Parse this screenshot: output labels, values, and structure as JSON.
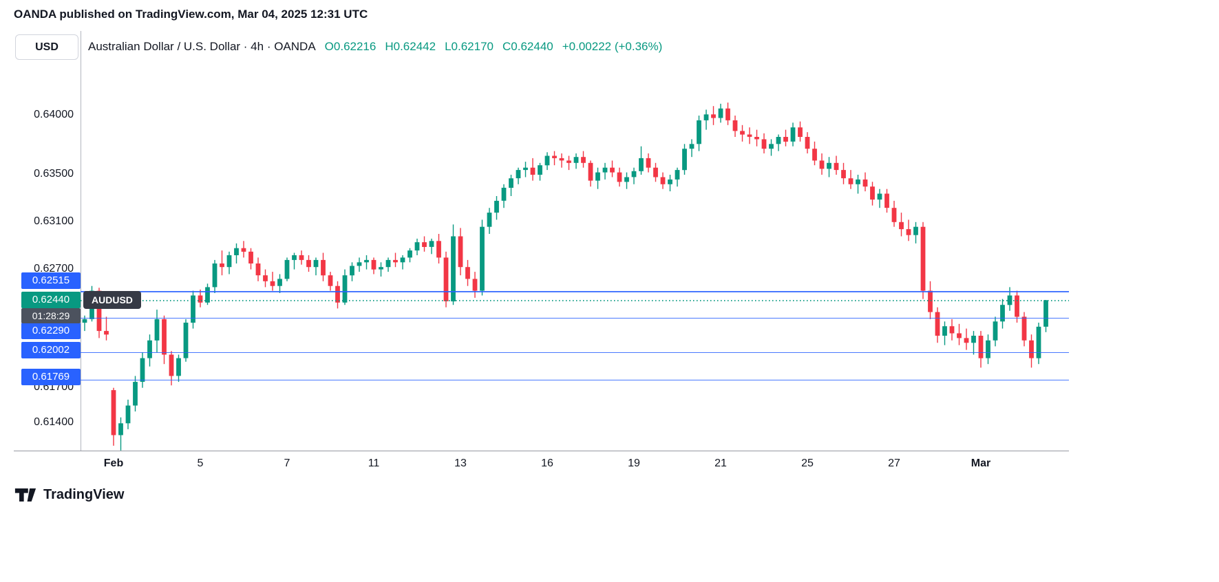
{
  "header": {
    "text": "OANDA published on TradingView.com, Mar 04, 2025 12:31 UTC"
  },
  "toolbar": {
    "currency_label": "USD"
  },
  "title": {
    "symbol_text": "Australian Dollar / U.S. Dollar · 4h · OANDA",
    "ohlc": [
      {
        "label": "O",
        "value": "0.62216"
      },
      {
        "label": "H",
        "value": "0.62442"
      },
      {
        "label": "L",
        "value": "0.62170"
      },
      {
        "label": "C",
        "value": "0.62440"
      }
    ],
    "change": "+0.00222 (+0.36%)"
  },
  "branding": {
    "text": "TradingView"
  },
  "colors": {
    "up": "#089981",
    "down": "#F23645",
    "line_blue": "#2962FF",
    "last_price_green": "#089981",
    "countdown_bg": "#4C525E",
    "chip_bg": "#363A45",
    "text": "#131722"
  },
  "chart_data": {
    "type": "candlestick",
    "symbol": "AUDUSD",
    "description": "Australian Dollar / U.S. Dollar",
    "timeframe": "4h",
    "exchange": "OANDA",
    "ohlc_display": {
      "open": "0.62216",
      "high": "0.62442",
      "low": "0.62170",
      "close": "0.62440",
      "change": "+0.00222 (+0.36%)"
    },
    "y_range": {
      "top": 0.64715,
      "bottom": 0.61169
    },
    "grid": false,
    "legend_position": "top-left",
    "y_axis_labels": [
      {
        "text": "0.64000",
        "price": 0.64
      },
      {
        "text": "0.63500",
        "price": 0.635
      },
      {
        "text": "0.63100",
        "price": 0.631
      },
      {
        "text": "0.62700",
        "price": 0.627
      },
      {
        "text": "0.61700",
        "price": 0.617
      },
      {
        "text": "0.61400",
        "price": 0.614
      }
    ],
    "price_lines": [
      {
        "label": "0.62515",
        "price": 0.62515,
        "label_dy": -15
      },
      {
        "label": "0.62290",
        "price": 0.6229,
        "label_dy": 19
      },
      {
        "label": "0.62002",
        "price": 0.62002,
        "label_dy": -3
      },
      {
        "label": "0.61769",
        "price": 0.61769,
        "label_dy": -4
      }
    ],
    "last_price": {
      "label": "0.62440",
      "price": 0.6244,
      "countdown": "01:28:29"
    },
    "x_ticks": [
      {
        "label": "Feb",
        "index": 4,
        "bold": true
      },
      {
        "label": "5",
        "index": 16,
        "bold": false
      },
      {
        "label": "7",
        "index": 28,
        "bold": false
      },
      {
        "label": "11",
        "index": 40,
        "bold": false
      },
      {
        "label": "13",
        "index": 52,
        "bold": false
      },
      {
        "label": "16",
        "index": 64,
        "bold": false
      },
      {
        "label": "19",
        "index": 76,
        "bold": false
      },
      {
        "label": "21",
        "index": 88,
        "bold": false
      },
      {
        "label": "25",
        "index": 100,
        "bold": false
      },
      {
        "label": "27",
        "index": 112,
        "bold": false
      },
      {
        "label": "Mar",
        "index": 124,
        "bold": true
      }
    ],
    "candles": [
      [
        0.6225,
        0.6231,
        0.6218,
        0.6228
      ],
      [
        0.6228,
        0.6256,
        0.6226,
        0.6252
      ],
      [
        0.6252,
        0.62545,
        0.6212,
        0.6218
      ],
      [
        0.6218,
        0.623,
        0.621,
        0.6215
      ],
      [
        0.6168,
        0.617,
        0.6121,
        0.613
      ],
      [
        0.613,
        0.6145,
        0.6117,
        0.614
      ],
      [
        0.614,
        0.616,
        0.6135,
        0.6155
      ],
      [
        0.6155,
        0.618,
        0.615,
        0.6175
      ],
      [
        0.6175,
        0.62,
        0.617,
        0.6195
      ],
      [
        0.6195,
        0.6215,
        0.6188,
        0.621
      ],
      [
        0.621,
        0.6236,
        0.62,
        0.6228
      ],
      [
        0.6228,
        0.6231,
        0.619,
        0.6198
      ],
      [
        0.6198,
        0.6201,
        0.6172,
        0.618
      ],
      [
        0.618,
        0.6198,
        0.6175,
        0.6195
      ],
      [
        0.6195,
        0.6228,
        0.6192,
        0.6225
      ],
      [
        0.6225,
        0.6252,
        0.622,
        0.6248
      ],
      [
        0.6248,
        0.6253,
        0.6238,
        0.6242
      ],
      [
        0.6242,
        0.6258,
        0.624,
        0.6255
      ],
      [
        0.6255,
        0.6278,
        0.625,
        0.6275
      ],
      [
        0.6275,
        0.6286,
        0.6265,
        0.6272
      ],
      [
        0.6272,
        0.6285,
        0.6266,
        0.6282
      ],
      [
        0.6282,
        0.6292,
        0.6275,
        0.6288
      ],
      [
        0.6288,
        0.6294,
        0.628,
        0.6285
      ],
      [
        0.6285,
        0.6288,
        0.627,
        0.6275
      ],
      [
        0.6275,
        0.628,
        0.626,
        0.6265
      ],
      [
        0.6265,
        0.627,
        0.6255,
        0.626
      ],
      [
        0.626,
        0.6268,
        0.6252,
        0.6256
      ],
      [
        0.6256,
        0.6266,
        0.625,
        0.6262
      ],
      [
        0.6262,
        0.628,
        0.626,
        0.6278
      ],
      [
        0.6278,
        0.6284,
        0.627,
        0.6282
      ],
      [
        0.6282,
        0.6286,
        0.6274,
        0.6278
      ],
      [
        0.6278,
        0.6282,
        0.6268,
        0.6272
      ],
      [
        0.6272,
        0.628,
        0.6265,
        0.6278
      ],
      [
        0.6278,
        0.6284,
        0.626,
        0.6265
      ],
      [
        0.6265,
        0.6268,
        0.6252,
        0.6256
      ],
      [
        0.6256,
        0.626,
        0.6237,
        0.6242
      ],
      [
        0.6242,
        0.627,
        0.624,
        0.6265
      ],
      [
        0.6265,
        0.6276,
        0.626,
        0.6273
      ],
      [
        0.6273,
        0.628,
        0.6268,
        0.6276
      ],
      [
        0.6276,
        0.6282,
        0.627,
        0.6278
      ],
      [
        0.6278,
        0.628,
        0.6266,
        0.627
      ],
      [
        0.627,
        0.6276,
        0.6264,
        0.6272
      ],
      [
        0.6272,
        0.628,
        0.6268,
        0.6278
      ],
      [
        0.6278,
        0.6284,
        0.6272,
        0.6276
      ],
      [
        0.6276,
        0.6282,
        0.627,
        0.628
      ],
      [
        0.628,
        0.6288,
        0.6276,
        0.6286
      ],
      [
        0.6286,
        0.6296,
        0.6282,
        0.6293
      ],
      [
        0.6293,
        0.6298,
        0.6285,
        0.6289
      ],
      [
        0.6289,
        0.6296,
        0.6283,
        0.6294
      ],
      [
        0.6294,
        0.63,
        0.6275,
        0.628
      ],
      [
        0.628,
        0.6285,
        0.6238,
        0.6243
      ],
      [
        0.6243,
        0.6308,
        0.624,
        0.6298
      ],
      [
        0.6298,
        0.6305,
        0.6265,
        0.6272
      ],
      [
        0.6272,
        0.6278,
        0.6256,
        0.6262
      ],
      [
        0.6262,
        0.6268,
        0.6246,
        0.6252
      ],
      [
        0.6252,
        0.6312,
        0.6248,
        0.6306
      ],
      [
        0.6306,
        0.6322,
        0.63,
        0.6318
      ],
      [
        0.6318,
        0.6332,
        0.6312,
        0.6328
      ],
      [
        0.6328,
        0.6342,
        0.6322,
        0.6339
      ],
      [
        0.6339,
        0.635,
        0.6332,
        0.6347
      ],
      [
        0.6347,
        0.6356,
        0.6342,
        0.6354
      ],
      [
        0.6354,
        0.6361,
        0.6348,
        0.6356
      ],
      [
        0.6356,
        0.6364,
        0.6345,
        0.635
      ],
      [
        0.635,
        0.636,
        0.6345,
        0.6358
      ],
      [
        0.6358,
        0.6369,
        0.6354,
        0.6366
      ],
      [
        0.6366,
        0.637,
        0.6358,
        0.6364
      ],
      [
        0.6364,
        0.6368,
        0.6356,
        0.6362
      ],
      [
        0.6362,
        0.6366,
        0.6354,
        0.636
      ],
      [
        0.636,
        0.6368,
        0.6355,
        0.6365
      ],
      [
        0.6365,
        0.637,
        0.6356,
        0.636
      ],
      [
        0.636,
        0.6362,
        0.634,
        0.6345
      ],
      [
        0.6345,
        0.6356,
        0.6338,
        0.6352
      ],
      [
        0.6352,
        0.636,
        0.6346,
        0.6356
      ],
      [
        0.6356,
        0.6362,
        0.6348,
        0.6352
      ],
      [
        0.6352,
        0.6356,
        0.634,
        0.6344
      ],
      [
        0.6344,
        0.6352,
        0.6338,
        0.6348
      ],
      [
        0.6348,
        0.6356,
        0.6342,
        0.6353
      ],
      [
        0.6353,
        0.6374,
        0.635,
        0.6364
      ],
      [
        0.6364,
        0.6368,
        0.6352,
        0.6356
      ],
      [
        0.6356,
        0.636,
        0.6344,
        0.6348
      ],
      [
        0.6348,
        0.6352,
        0.6338,
        0.6342
      ],
      [
        0.6342,
        0.635,
        0.6336,
        0.6346
      ],
      [
        0.6346,
        0.6356,
        0.634,
        0.6354
      ],
      [
        0.6354,
        0.6376,
        0.635,
        0.6372
      ],
      [
        0.6372,
        0.638,
        0.6365,
        0.6376
      ],
      [
        0.6376,
        0.64,
        0.637,
        0.6396
      ],
      [
        0.6396,
        0.6405,
        0.6388,
        0.6401
      ],
      [
        0.6401,
        0.6408,
        0.6392,
        0.6398
      ],
      [
        0.6398,
        0.641,
        0.6394,
        0.6406
      ],
      [
        0.6406,
        0.6411,
        0.6392,
        0.6396
      ],
      [
        0.6396,
        0.64,
        0.6382,
        0.6387
      ],
      [
        0.6387,
        0.6392,
        0.6378,
        0.6384
      ],
      [
        0.6384,
        0.639,
        0.6376,
        0.6382
      ],
      [
        0.6382,
        0.6388,
        0.6374,
        0.638
      ],
      [
        0.638,
        0.6385,
        0.6368,
        0.6372
      ],
      [
        0.6372,
        0.638,
        0.6366,
        0.6376
      ],
      [
        0.6376,
        0.6384,
        0.637,
        0.6382
      ],
      [
        0.6382,
        0.6388,
        0.6374,
        0.6378
      ],
      [
        0.6378,
        0.6394,
        0.6374,
        0.639
      ],
      [
        0.639,
        0.6395,
        0.6378,
        0.6382
      ],
      [
        0.6382,
        0.6386,
        0.6368,
        0.6372
      ],
      [
        0.6372,
        0.6378,
        0.6358,
        0.6362
      ],
      [
        0.6362,
        0.6368,
        0.635,
        0.6355
      ],
      [
        0.6355,
        0.6365,
        0.6348,
        0.636
      ],
      [
        0.636,
        0.6366,
        0.635,
        0.6354
      ],
      [
        0.6354,
        0.636,
        0.6342,
        0.6347
      ],
      [
        0.6347,
        0.6354,
        0.6338,
        0.6342
      ],
      [
        0.6342,
        0.635,
        0.6334,
        0.6346
      ],
      [
        0.6346,
        0.6352,
        0.6336,
        0.634
      ],
      [
        0.634,
        0.6344,
        0.6324,
        0.6329
      ],
      [
        0.6329,
        0.6338,
        0.6322,
        0.6334
      ],
      [
        0.6334,
        0.6338,
        0.6318,
        0.6322
      ],
      [
        0.6322,
        0.6328,
        0.6306,
        0.631
      ],
      [
        0.631,
        0.6318,
        0.6298,
        0.6304
      ],
      [
        0.6304,
        0.6312,
        0.6294,
        0.6299
      ],
      [
        0.6299,
        0.631,
        0.6292,
        0.6306
      ],
      [
        0.6306,
        0.631,
        0.6245,
        0.6252
      ],
      [
        0.6252,
        0.626,
        0.6228,
        0.6234
      ],
      [
        0.6234,
        0.6238,
        0.6208,
        0.6214
      ],
      [
        0.6214,
        0.6226,
        0.6206,
        0.6222
      ],
      [
        0.6222,
        0.6228,
        0.621,
        0.6216
      ],
      [
        0.6216,
        0.6224,
        0.6206,
        0.6212
      ],
      [
        0.6212,
        0.622,
        0.6202,
        0.6208
      ],
      [
        0.6208,
        0.6218,
        0.6198,
        0.6214
      ],
      [
        0.6214,
        0.6218,
        0.6187,
        0.6195
      ],
      [
        0.6195,
        0.6215,
        0.619,
        0.621
      ],
      [
        0.621,
        0.623,
        0.6205,
        0.6226
      ],
      [
        0.6226,
        0.6245,
        0.622,
        0.624
      ],
      [
        0.624,
        0.6255,
        0.6235,
        0.6248
      ],
      [
        0.6248,
        0.6252,
        0.6225,
        0.623
      ],
      [
        0.623,
        0.6234,
        0.6205,
        0.621
      ],
      [
        0.621,
        0.6215,
        0.6187,
        0.6195
      ],
      [
        0.6195,
        0.6225,
        0.619,
        0.62216
      ],
      [
        0.62216,
        0.62442,
        0.6217,
        0.6244
      ]
    ]
  }
}
